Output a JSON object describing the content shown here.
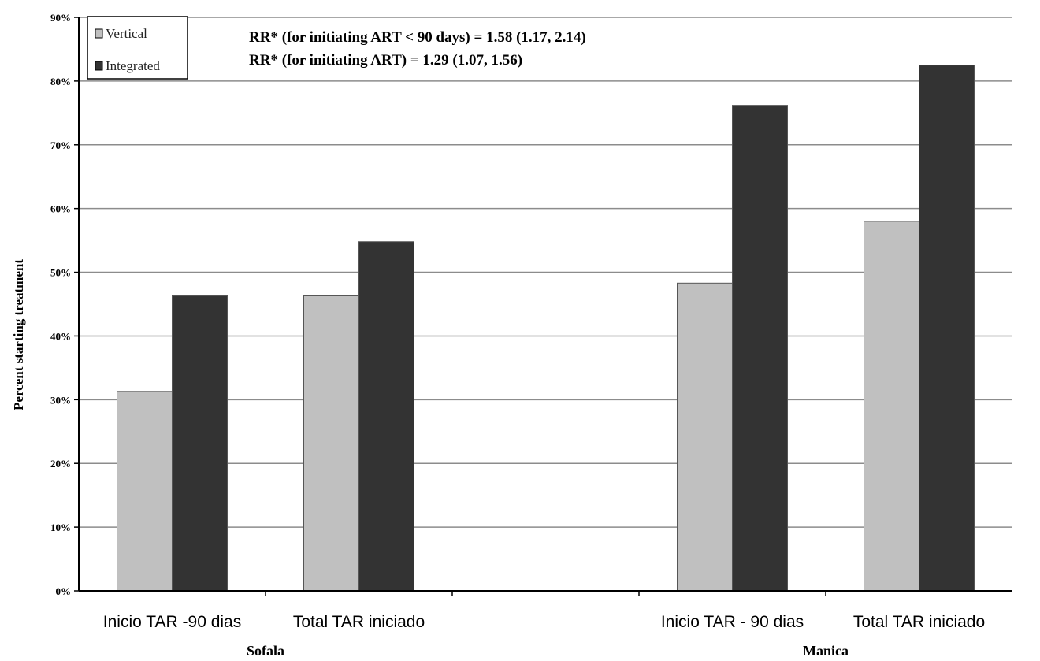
{
  "chart_data": {
    "type": "bar",
    "ylabel": "Percent starting treatment",
    "ylim": [
      0,
      90
    ],
    "y_ticks": [
      "0%",
      "10%",
      "20%",
      "30%",
      "40%",
      "50%",
      "60%",
      "70%",
      "80%",
      "90%"
    ],
    "grid": true,
    "legend_position": "top-left",
    "groups": [
      "Sofala",
      "Manica"
    ],
    "categories": [
      "Inicio TAR -90 dias",
      "Total  TAR iniciado",
      "Inicio TAR - 90 dias",
      "Total TAR iniciado"
    ],
    "category_group": [
      "Sofala",
      "Sofala",
      "Manica",
      "Manica"
    ],
    "series": [
      {
        "name": "Vertical",
        "color": "#c0c0c0",
        "values": [
          31.3,
          46.3,
          48.3,
          58.0
        ]
      },
      {
        "name": "Integrated",
        "color": "#333333",
        "values": [
          46.3,
          54.8,
          76.2,
          82.5
        ]
      }
    ],
    "annotations": [
      "RR* (for initiating ART < 90 days) = 1.58 (1.17, 2.14)",
      "RR* (for initiating ART) = 1.29 (1.07, 1.56)"
    ]
  }
}
